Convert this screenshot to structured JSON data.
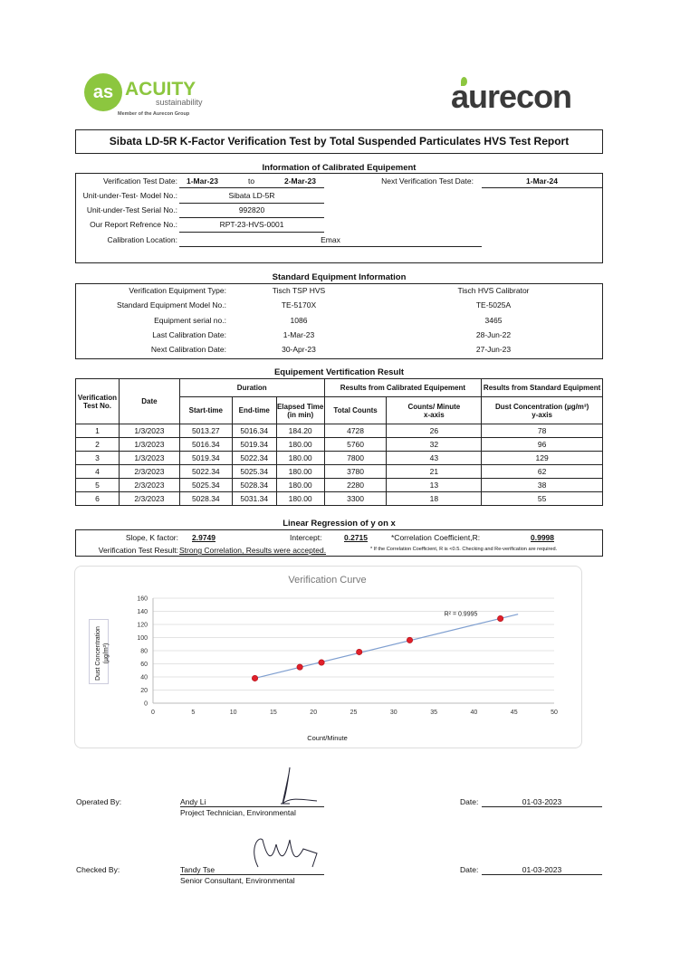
{
  "logos": {
    "left": {
      "name": "ACUITY",
      "sub": "sustainability",
      "tagline": "Member of the Aurecon Group",
      "color": "#8cc63f"
    },
    "right": {
      "name": "aurecon",
      "color": "#3a3a3a",
      "accent": "#8cc63f"
    }
  },
  "title": "Sibata  LD-5R  K-Factor Verification Test by Total Suspended Particulates HVS Test Report",
  "calibrated": {
    "heading": "Information of Calibrated Equipement",
    "test_date_label": "Verification Test Date:",
    "test_date_from": "1-Mar-23",
    "to": "to",
    "test_date_to": "2-Mar-23",
    "next_label": "Next Verification Test Date:",
    "next_value": "1-Mar-24",
    "model_label": "Unit-under-Test- Model No.:",
    "model_value": "Sibata LD-5R",
    "serial_label": "Unit-under-Test Serial No.:",
    "serial_value": "992820",
    "ref_label": "Our Report Refrence No.:",
    "ref_value": "RPT-23-HVS-0001",
    "location_label": "Calibration Location:",
    "location_value": "Emax"
  },
  "standard": {
    "heading": "Standard Equipment Information",
    "rows": [
      {
        "label": "Verification Equipment Type:",
        "a": "Tisch TSP HVS",
        "b": "Tisch HVS Calibrator"
      },
      {
        "label": "Standard Equipment Model No.:",
        "a": "TE-5170X",
        "b": "TE-5025A"
      },
      {
        "label": "Equipment serial no.:",
        "a": "1086",
        "b": "3465"
      },
      {
        "label": "Last Calibration Date:",
        "a": "1-Mar-23",
        "b": "28-Jun-22"
      },
      {
        "label": "Next Calibration Date:",
        "a": "30-Apr-23",
        "b": "27-Jun-23"
      }
    ]
  },
  "results": {
    "heading": "Equipement Vertification Result",
    "h": {
      "test_no": "Verification Test No.",
      "date": "Date",
      "duration": "Duration",
      "cal": "Results from Calibrated Equipement",
      "std": "Results from Standard Equipment",
      "start": "Start-time",
      "end": "End-time",
      "elapsed": "Elapsed Time (in min)",
      "total": "Total Counts",
      "cpm": "Counts/ Minute",
      "xaxis": "x-axis",
      "dust": "Dust Concentration (µg/m³)",
      "yaxis": "y-axis"
    },
    "rows": [
      [
        "1",
        "1/3/2023",
        "5013.27",
        "5016.34",
        "184.20",
        "4728",
        "26",
        "78"
      ],
      [
        "2",
        "1/3/2023",
        "5016.34",
        "5019.34",
        "180.00",
        "5760",
        "32",
        "96"
      ],
      [
        "3",
        "1/3/2023",
        "5019.34",
        "5022.34",
        "180.00",
        "7800",
        "43",
        "129"
      ],
      [
        "4",
        "2/3/2023",
        "5022.34",
        "5025.34",
        "180.00",
        "3780",
        "21",
        "62"
      ],
      [
        "5",
        "2/3/2023",
        "5025.34",
        "5028.34",
        "180.00",
        "2280",
        "13",
        "38"
      ],
      [
        "6",
        "2/3/2023",
        "5028.34",
        "5031.34",
        "180.00",
        "3300",
        "18",
        "55"
      ]
    ]
  },
  "regression": {
    "heading": "Linear Regression of y on x",
    "slope_label": "Slope, K factor:",
    "slope": "2.9749",
    "intercept_label": "Intercept:",
    "intercept": "0.2715",
    "r_label": "*Correlation Coefficient,R:",
    "r": "0.9998",
    "result_label": "Verification Test Result:",
    "result": "Strong Correlation, Results were accepted.",
    "note": "* If the Correlation Coefficient, R is <0.5. Checking and Re-verification are required."
  },
  "chart_data": {
    "type": "scatter",
    "title": "Verification Curve",
    "xlabel": "Count/Minute",
    "ylabel": "Dust Concentration (µg/m³)",
    "xlim": [
      0,
      50
    ],
    "ylim": [
      0,
      160
    ],
    "xticks": [
      0,
      5,
      10,
      15,
      20,
      25,
      30,
      35,
      40,
      45,
      50
    ],
    "yticks": [
      0,
      20,
      40,
      60,
      80,
      100,
      120,
      140,
      160
    ],
    "grid": "horizontal",
    "x": [
      12.7,
      18.3,
      21,
      25.7,
      32,
      43.3
    ],
    "y": [
      38,
      55,
      62,
      78,
      96,
      129
    ],
    "trendline": {
      "x": [
        12.7,
        45.5
      ],
      "label": "R² = 0.9995",
      "color": "#7f9fd0"
    },
    "marker_color": "#e0202a"
  },
  "signoff": [
    {
      "label": "Operated By:",
      "name": "Andy Li",
      "role": "Project Technician, Environmental",
      "date_label": "Date:",
      "date": "01-03-2023"
    },
    {
      "label": "Checked By:",
      "name": "Tandy Tse",
      "role": "Senior Consultant, Environmental",
      "date_label": "Date:",
      "date": "01-03-2023"
    }
  ]
}
